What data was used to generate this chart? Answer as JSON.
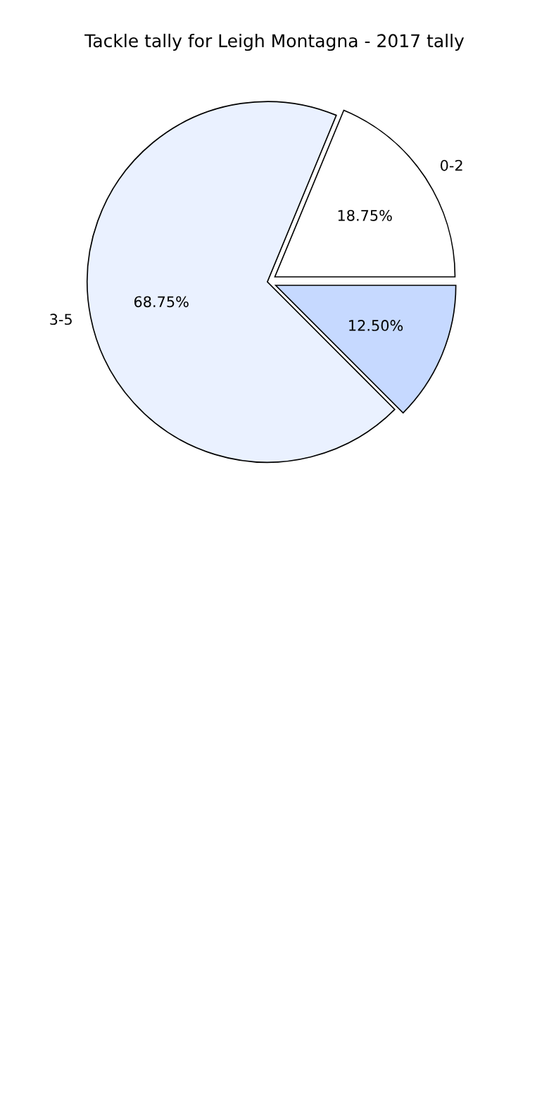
{
  "chart_data": {
    "type": "pie",
    "title": "Tackle tally for Leigh Montagna - 2017 tally",
    "categories": [
      "0-2",
      "3-5",
      null
    ],
    "values": [
      18.75,
      68.75,
      12.5
    ],
    "colors": [
      "#ffffff",
      "#eaf1ff",
      "#c6d9ff"
    ],
    "value_labels": [
      "18.75%",
      "68.75%",
      "12.50%"
    ]
  }
}
